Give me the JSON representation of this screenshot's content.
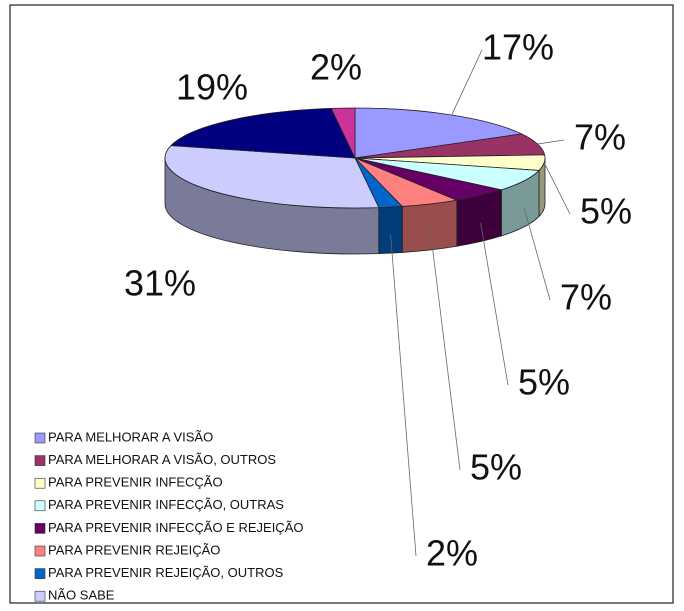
{
  "chart_data": {
    "type": "pie",
    "categories": [
      "PARA MELHORAR A VISÃO",
      "PARA MELHORAR A VISÃO, OUTROS",
      "PARA PREVENIR INFECÇÃO",
      "PARA PREVENIR INFECÇÃO, OUTRAS",
      "PARA PREVENIR INFECÇÃO E REJEIÇÃO",
      "PARA PREVENIR REJEIÇÃO",
      "PARA PREVENIR REJEIÇÃO, OUTROS",
      "NÃO SABE",
      null,
      null
    ],
    "values": [
      17,
      7,
      5,
      7,
      5,
      5,
      2,
      31,
      19,
      2
    ],
    "value_labels": [
      "17%",
      "7%",
      "5%",
      "7%",
      "5%",
      "5%",
      "2%",
      "31%",
      "19%",
      "2%"
    ],
    "colors": [
      "#9999ff",
      "#993366",
      "#ffffcc",
      "#ccffff",
      "#660066",
      "#ff8080",
      "#0066cc",
      "#ccccff",
      "#000080",
      "#cc3399"
    ],
    "legend": true
  }
}
